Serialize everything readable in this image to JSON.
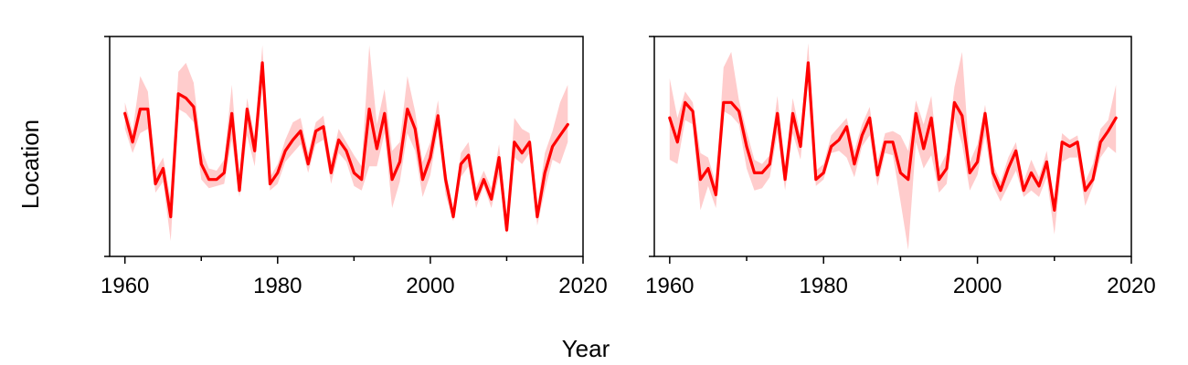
{
  "figure": {
    "xlabel": "Year",
    "ylabel": "Location"
  },
  "chart_data": [
    {
      "type": "line",
      "panel": "left",
      "xlabel": "Year",
      "ylabel": "Location",
      "xlim": [
        1958,
        2020
      ],
      "ylim": [
        0,
        10
      ],
      "x_ticks": [
        1960,
        1980,
        2000,
        2020
      ],
      "x_minor_ticks": [
        1970,
        1990,
        2010
      ],
      "y_ticks_unlabeled": [
        0,
        10
      ],
      "grid": false,
      "line_color": "#ff0000",
      "band_color": "#ffcccc",
      "x": [
        1960,
        1961,
        1962,
        1963,
        1964,
        1965,
        1966,
        1967,
        1968,
        1969,
        1970,
        1971,
        1972,
        1973,
        1974,
        1975,
        1976,
        1977,
        1978,
        1979,
        1980,
        1981,
        1982,
        1983,
        1984,
        1985,
        1986,
        1987,
        1988,
        1989,
        1990,
        1991,
        1992,
        1993,
        1994,
        1995,
        1996,
        1997,
        1998,
        1999,
        2000,
        2001,
        2002,
        2003,
        2004,
        2005,
        2006,
        2007,
        2008,
        2009,
        2010,
        2011,
        2012,
        2013,
        2014,
        2015,
        2016,
        2017,
        2018
      ],
      "values": [
        6.5,
        5.2,
        6.7,
        6.7,
        3.3,
        4.0,
        1.8,
        7.4,
        7.2,
        6.8,
        4.2,
        3.5,
        3.5,
        3.8,
        6.5,
        3.0,
        6.7,
        4.8,
        8.8,
        3.3,
        3.8,
        4.8,
        5.3,
        5.7,
        4.2,
        5.7,
        5.9,
        3.8,
        5.3,
        4.8,
        3.8,
        3.5,
        6.7,
        4.9,
        6.5,
        3.5,
        4.3,
        6.7,
        5.8,
        3.5,
        4.5,
        6.4,
        3.5,
        1.8,
        4.2,
        4.6,
        2.6,
        3.5,
        2.6,
        4.5,
        1.2,
        5.2,
        4.7,
        5.2,
        1.8,
        3.8,
        5.0,
        5.5,
        6.0
      ],
      "lower": [
        5.8,
        4.7,
        5.6,
        5.8,
        2.9,
        3.4,
        0.7,
        6.7,
        6.5,
        6.1,
        3.5,
        3.1,
        3.2,
        3.3,
        5.3,
        2.7,
        5.5,
        4.1,
        7.8,
        3.0,
        3.3,
        4.3,
        4.7,
        5.1,
        3.8,
        5.1,
        5.3,
        3.3,
        4.7,
        4.3,
        3.2,
        3.0,
        4.1,
        4.1,
        5.6,
        2.2,
        3.4,
        5.6,
        4.8,
        2.7,
        3.7,
        5.8,
        2.8,
        1.6,
        3.6,
        4.1,
        2.2,
        3.2,
        2.2,
        3.7,
        1.0,
        4.5,
        4.2,
        4.7,
        1.4,
        3.0,
        4.4,
        4.2,
        5.2
      ],
      "upper": [
        7.0,
        5.7,
        8.2,
        7.5,
        3.9,
        4.5,
        2.6,
        8.4,
        8.8,
        7.9,
        4.9,
        4.0,
        3.9,
        4.4,
        7.8,
        3.4,
        7.2,
        5.4,
        9.6,
        3.6,
        4.2,
        5.3,
        6.1,
        6.3,
        4.7,
        6.1,
        6.4,
        4.3,
        5.8,
        5.2,
        4.6,
        4.1,
        9.6,
        6.0,
        7.6,
        4.8,
        5.2,
        8.2,
        6.6,
        4.3,
        5.2,
        7.1,
        4.0,
        2.0,
        4.7,
        5.2,
        3.1,
        3.9,
        3.1,
        5.1,
        1.6,
        6.3,
        5.8,
        5.6,
        2.2,
        4.7,
        5.7,
        7.0,
        7.8
      ]
    },
    {
      "type": "line",
      "panel": "right",
      "xlabel": "Year",
      "ylabel": "Location",
      "xlim": [
        1958,
        2020
      ],
      "ylim": [
        0,
        10
      ],
      "x_ticks": [
        1960,
        1980,
        2000,
        2020
      ],
      "x_minor_ticks": [
        1970,
        1990,
        2010
      ],
      "y_ticks_unlabeled": [
        0,
        10
      ],
      "grid": false,
      "line_color": "#ff0000",
      "band_color": "#ffcccc",
      "x": [
        1960,
        1961,
        1962,
        1963,
        1964,
        1965,
        1966,
        1967,
        1968,
        1969,
        1970,
        1971,
        1972,
        1973,
        1974,
        1975,
        1976,
        1977,
        1978,
        1979,
        1980,
        1981,
        1982,
        1983,
        1984,
        1985,
        1986,
        1987,
        1988,
        1989,
        1990,
        1991,
        1992,
        1993,
        1994,
        1995,
        1996,
        1997,
        1998,
        1999,
        2000,
        2001,
        2002,
        2003,
        2004,
        2005,
        2006,
        2007,
        2008,
        2009,
        2010,
        2011,
        2012,
        2013,
        2014,
        2015,
        2016,
        2017,
        2018
      ],
      "values": [
        6.3,
        5.2,
        7.0,
        6.6,
        3.5,
        4.0,
        2.8,
        7.0,
        7.0,
        6.6,
        5.0,
        3.8,
        3.8,
        4.2,
        6.5,
        3.5,
        6.5,
        5.0,
        8.8,
        3.5,
        3.8,
        5.0,
        5.3,
        5.9,
        4.2,
        5.5,
        6.3,
        3.7,
        5.2,
        5.2,
        3.8,
        3.5,
        6.5,
        4.9,
        6.3,
        3.5,
        4.0,
        7.0,
        6.4,
        3.8,
        4.3,
        6.5,
        3.8,
        3.0,
        4.0,
        4.8,
        3.0,
        3.8,
        3.2,
        4.3,
        2.1,
        5.2,
        5.0,
        5.2,
        3.0,
        3.5,
        5.2,
        5.7,
        6.3
      ],
      "lower": [
        4.4,
        4.2,
        6.2,
        6.0,
        2.1,
        3.2,
        2.2,
        6.6,
        6.4,
        6.0,
        4.0,
        3.0,
        3.1,
        3.6,
        5.6,
        3.0,
        5.6,
        4.4,
        8.0,
        3.2,
        3.5,
        4.7,
        4.8,
        4.5,
        3.6,
        5.0,
        5.5,
        3.2,
        4.7,
        4.6,
        2.5,
        0.3,
        5.2,
        4.0,
        4.6,
        2.9,
        3.3,
        6.3,
        5.1,
        3.0,
        3.7,
        5.5,
        3.2,
        2.5,
        3.2,
        3.9,
        2.7,
        3.0,
        2.7,
        3.6,
        1.0,
        4.3,
        4.5,
        4.5,
        2.3,
        3.2,
        4.5,
        5.0,
        4.7
      ],
      "upper": [
        8.1,
        6.3,
        7.5,
        7.0,
        4.7,
        4.5,
        3.3,
        8.6,
        9.3,
        7.1,
        5.7,
        4.4,
        4.2,
        4.6,
        7.3,
        4.1,
        7.2,
        5.5,
        9.7,
        3.9,
        4.2,
        5.5,
        5.9,
        6.3,
        4.8,
        6.0,
        6.8,
        4.3,
        5.6,
        5.7,
        5.5,
        4.8,
        7.1,
        6.0,
        7.3,
        4.0,
        4.7,
        7.7,
        9.3,
        4.3,
        5.1,
        6.9,
        4.2,
        3.4,
        4.5,
        5.2,
        3.4,
        4.4,
        3.6,
        4.8,
        2.5,
        5.6,
        5.3,
        5.5,
        3.4,
        4.2,
        5.8,
        6.2,
        7.8
      ]
    }
  ]
}
